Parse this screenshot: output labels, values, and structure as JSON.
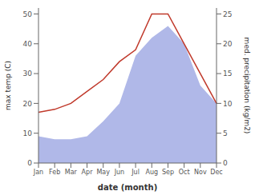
{
  "chart_data": {
    "type": "line",
    "xlabel": "date (month)",
    "ylabel": "max temp (C)",
    "y2label": "med. precipitation (kg/m2)",
    "categories": [
      "Jan",
      "Feb",
      "Mar",
      "Apr",
      "May",
      "Jun",
      "Jul",
      "Aug",
      "Sep",
      "Oct",
      "Nov",
      "Dec"
    ],
    "series": [
      {
        "type": "area",
        "axis": "y2",
        "color": "#b0b8e8",
        "values": [
          4.5,
          4,
          4,
          4.5,
          7,
          10,
          18,
          21,
          23,
          20,
          13,
          10
        ]
      },
      {
        "type": "line",
        "color": "#c0392b",
        "values": [
          17,
          18,
          20,
          24,
          28,
          34,
          38,
          50,
          50,
          40,
          30,
          20
        ]
      }
    ],
    "ylim": [
      0,
      52
    ],
    "yticks": [
      0,
      10,
      20,
      30,
      40,
      50
    ],
    "y2lim": [
      0,
      26
    ],
    "y2ticks": [
      0,
      5,
      10,
      15,
      20,
      25
    ],
    "grid": false
  }
}
